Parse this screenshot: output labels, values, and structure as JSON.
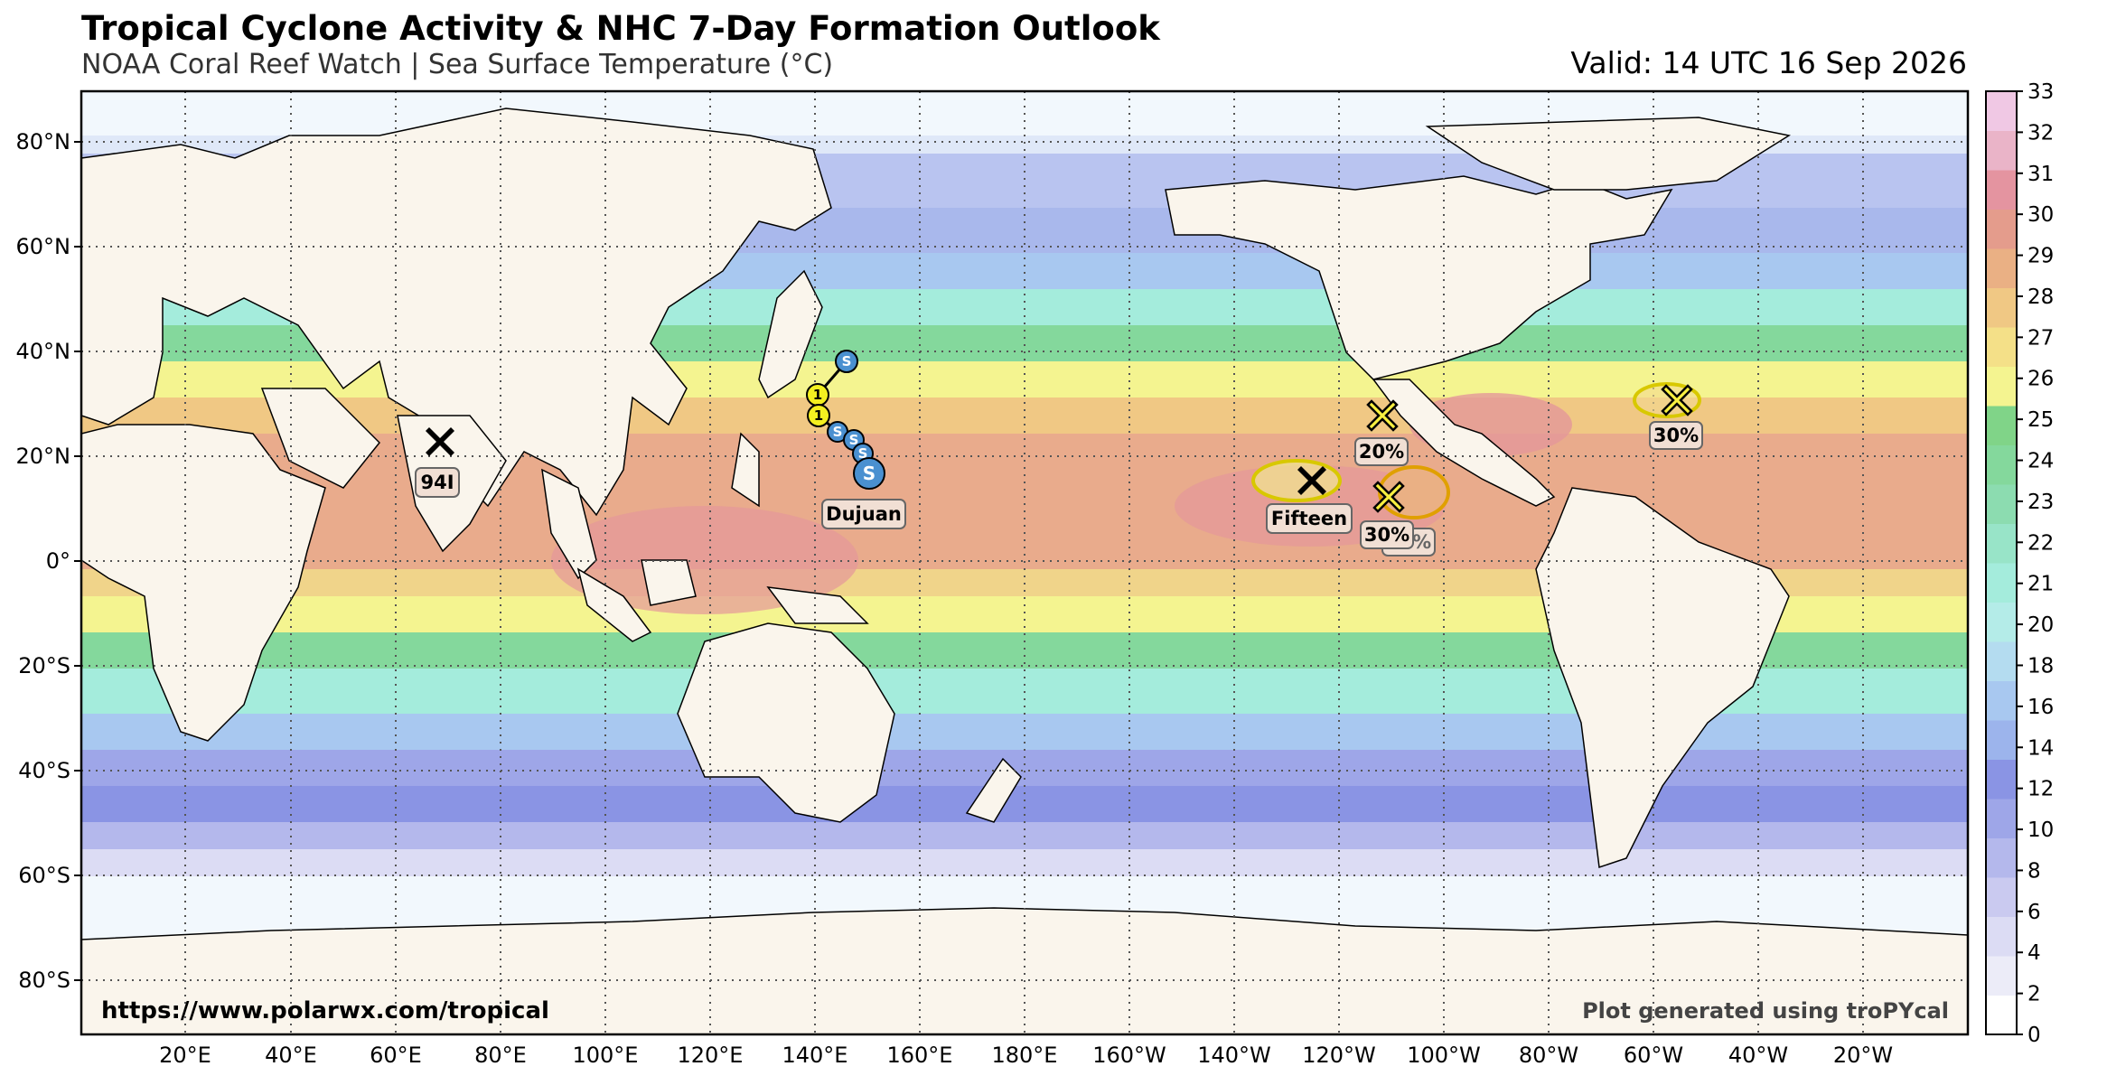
{
  "title": "Tropical Cyclone Activity & NHC 7-Day Formation Outlook",
  "subtitle": "NOAA Coral Reef Watch | Sea Surface Temperature (°C)",
  "valid": "Valid: 14 UTC 16 Sep 2026",
  "footer_left": "https://www.polarwx.com/tropical",
  "footer_right": "Plot generated using troPYcal",
  "lat_labels": [
    "80°N",
    "60°N",
    "40°N",
    "20°N",
    "0°",
    "20°S",
    "40°S",
    "60°S",
    "80°S"
  ],
  "lon_labels": [
    "20°E",
    "40°E",
    "60°E",
    "80°E",
    "100°E",
    "120°E",
    "140°E",
    "160°E",
    "180°E",
    "160°W",
    "140°W",
    "120°W",
    "100°W",
    "80°W",
    "60°W",
    "40°W",
    "20°W"
  ],
  "colorbar": {
    "ticks": [
      "0",
      "2",
      "4",
      "6",
      "8",
      "10",
      "12",
      "14",
      "16",
      "18",
      "20",
      "21",
      "22",
      "23",
      "24",
      "25",
      "26",
      "27",
      "28",
      "29",
      "30",
      "31",
      "32",
      "33"
    ],
    "colors": [
      "#ffffff",
      "#ececf8",
      "#dcdcf4",
      "#cacaf0",
      "#b4b8ec",
      "#9ea6e8",
      "#8a94e4",
      "#9cb4ec",
      "#a8c8f0",
      "#b4dcf0",
      "#b4ece8",
      "#a4ecdc",
      "#98e4c8",
      "#8cdcb0",
      "#84d89c",
      "#80d488",
      "#f4f490",
      "#f4e088",
      "#f0c884",
      "#eab084",
      "#e49c8c",
      "#e494a0",
      "#eab4c8",
      "#f0c8e4"
    ]
  },
  "storms": [
    {
      "name": "94I",
      "type": "invest",
      "lat": "23°N",
      "lon": "68°E"
    },
    {
      "name": "Dujuan",
      "type": "tropical cyclone",
      "track_symbols": [
        "S",
        "S",
        "S",
        "S",
        "S",
        "1",
        "1",
        "S"
      ]
    },
    {
      "name": "Fifteen",
      "type": "depression"
    }
  ],
  "outlooks": [
    {
      "label": "20%"
    },
    {
      "label": "30%"
    },
    {
      "label": "30%",
      "overlap": "30%"
    },
    {
      "label": "30%"
    }
  ],
  "colors": {
    "land": "#faf5ec",
    "ocean_cold": "#f2f8fd",
    "border": "#000000"
  }
}
